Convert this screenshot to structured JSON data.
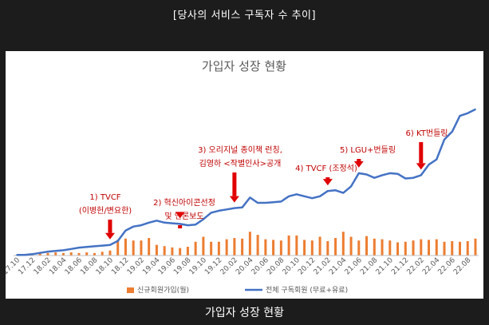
{
  "header": {
    "caption": "[당사의 서비스 구독자 수 추이]"
  },
  "footer": {
    "caption": "가입자 성장 현황"
  },
  "chart_data": {
    "type": "bar+line",
    "title": "가입자 성장 현황",
    "x": [
      "17.10",
      "17.11",
      "17.12",
      "18.01",
      "18.02",
      "18.03",
      "18.04",
      "18.05",
      "18.06",
      "18.07",
      "18.08",
      "18.09",
      "18.10",
      "18.11",
      "18.12",
      "19.01",
      "19.02",
      "19.03",
      "19.04",
      "19.05",
      "19.06",
      "19.07",
      "19.08",
      "19.09",
      "19.10",
      "19.11",
      "19.12",
      "20.01",
      "20.02",
      "20.03",
      "20.04",
      "20.05",
      "20.06",
      "20.07",
      "20.08",
      "20.09",
      "20.10",
      "20.11",
      "20.12",
      "21.01",
      "21.02",
      "21.03",
      "21.04",
      "21.05",
      "21.06",
      "21.07",
      "21.08",
      "21.09",
      "21.10",
      "21.11",
      "21.12",
      "22.01",
      "22.02",
      "22.03",
      "22.04",
      "22.05",
      "22.06",
      "22.07",
      "22.08",
      "22.09"
    ],
    "x_tick_labels": [
      "17.10",
      "17.12",
      "18.02",
      "18.04",
      "18.06",
      "18.08",
      "18.10",
      "18.12",
      "19.02",
      "19.04",
      "19.06",
      "19.08",
      "19.10",
      "19.12",
      "20.02",
      "20.04",
      "20.06",
      "20.08",
      "20.10",
      "20.12",
      "21.02",
      "21.04",
      "21.06",
      "21.08",
      "21.10",
      "21.12",
      "22.02",
      "22.04",
      "22.06",
      "22.08"
    ],
    "series": [
      {
        "name": "신규회원가입(월)",
        "kind": "bar",
        "color": "#ED7D31",
        "values": [
          1,
          1,
          2,
          5,
          4,
          5,
          4,
          5,
          4,
          5,
          4,
          6,
          8,
          25,
          27,
          24,
          24,
          28,
          17,
          15,
          13,
          12,
          14,
          22,
          30,
          22,
          22,
          26,
          28,
          27,
          38,
          33,
          26,
          25,
          24,
          32,
          32,
          25,
          24,
          30,
          23,
          28,
          38,
          30,
          24,
          31,
          27,
          26,
          24,
          21,
          22,
          24,
          26,
          25,
          26,
          22,
          23,
          22,
          23,
          27
        ]
      },
      {
        "name": "전체 구독회원 (무료+유료)",
        "kind": "line",
        "color": "#4472C4",
        "values": [
          1,
          1,
          2,
          4,
          6,
          7,
          8,
          10,
          12,
          13,
          14,
          15,
          16,
          22,
          38,
          44,
          46,
          50,
          53,
          50,
          49,
          48,
          46,
          47,
          55,
          65,
          68,
          70,
          72,
          73,
          88,
          80,
          80,
          81,
          82,
          90,
          93,
          90,
          87,
          90,
          98,
          99,
          95,
          105,
          125,
          123,
          118,
          122,
          125,
          124,
          117,
          118,
          122,
          138,
          146,
          176,
          188,
          212,
          216,
          222
        ]
      }
    ],
    "ylim": [
      0,
      240
    ],
    "annotations": [
      {
        "lines": [
          "1)  TVCF",
          "(이병헌/변요한)"
        ],
        "x": "18.10"
      },
      {
        "lines": [
          "2)  혁신아이콘선정",
          "및 언론보도"
        ],
        "x": "19.07"
      },
      {
        "lines": [
          "3) 오리지널 종이책 런칭,",
          "김영하 <작별인사>공개"
        ],
        "x": "20.02"
      },
      {
        "lines": [
          "4) TVCF (조정석)"
        ],
        "x": "21.02"
      },
      {
        "lines": [
          "5) LGU+번들링"
        ],
        "x": "21.06"
      },
      {
        "lines": [
          "6) KT번들링"
        ],
        "x": "22.02"
      }
    ],
    "legend_position": "bottom",
    "grid": false
  }
}
